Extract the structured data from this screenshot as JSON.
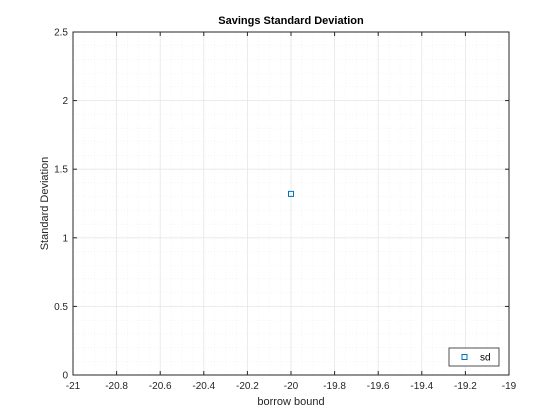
{
  "chart_data": {
    "type": "scatter",
    "title": "Savings Standard Deviation",
    "xlabel": "borrow bound",
    "ylabel": "Standard Deviation",
    "xlim": [
      -21,
      -19
    ],
    "ylim": [
      0,
      2.5
    ],
    "xticks": [
      -21,
      -20.8,
      -20.6,
      -20.4,
      -20.2,
      -20,
      -19.8,
      -19.6,
      -19.4,
      -19.2,
      -19
    ],
    "xtick_labels": [
      "-21",
      "-20.8",
      "-20.6",
      "-20.4",
      "-20.2",
      "-20",
      "-19.8",
      "-19.6",
      "-19.4",
      "-19.2",
      "-19"
    ],
    "yticks": [
      0,
      0.5,
      1,
      1.5,
      2,
      2.5
    ],
    "ytick_labels": [
      "0",
      "0.5",
      "1",
      "1.5",
      "2",
      "2.5"
    ],
    "grid": "on (major and minor)",
    "legend_position": "bottom-right",
    "series": [
      {
        "name": "sd",
        "marker": "square",
        "color": "#0072BD",
        "x": [
          -20
        ],
        "y": [
          1.32
        ]
      }
    ]
  },
  "colors": {
    "background": "#ffffff",
    "axes_edge": "#262626",
    "major_grid": "#e6e6e6",
    "minor_grid": "#efefef",
    "series_color": "#0072BD"
  }
}
